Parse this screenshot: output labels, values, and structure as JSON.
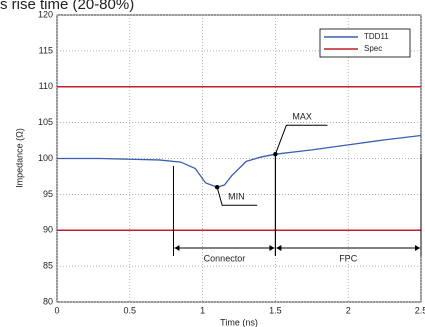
{
  "chart_data": {
    "type": "line",
    "title": "s rise time (20-80%)",
    "xlabel": "Time (ns)",
    "ylabel": "Impedance (Ω)",
    "x": [
      0,
      0.3,
      0.5,
      0.7,
      0.85,
      0.95,
      1.02,
      1.1,
      1.15,
      1.2,
      1.3,
      1.4,
      1.5,
      1.75,
      2,
      2.25,
      2.5
    ],
    "series": [
      {
        "name": "TDD11",
        "color": "#3b5fb0",
        "values": [
          100,
          100,
          99.9,
          99.8,
          99.5,
          98.6,
          96.6,
          96.0,
          96.3,
          97.6,
          99.6,
          100.2,
          100.6,
          101.2,
          101.9,
          102.6,
          103.2
        ]
      }
    ],
    "spec": {
      "name": "Spec",
      "color": "#c0202a",
      "values": [
        110,
        90
      ]
    },
    "annotations": [
      {
        "label": "MIN",
        "x": 1.1,
        "y": 96.0
      },
      {
        "label": "MAX",
        "x": 1.5,
        "y": 100.6
      }
    ],
    "regions": [
      {
        "label": "Connector",
        "start": 0.8,
        "end": 1.5
      },
      {
        "label": "FPC",
        "start": 1.5,
        "end": 2.5
      }
    ],
    "xlim": [
      0,
      2.5
    ],
    "xticks": [
      0,
      0.5,
      1,
      1.5,
      2,
      2.5
    ],
    "ylim": [
      80,
      120
    ],
    "yticks": [
      80,
      85,
      90,
      95,
      100,
      105,
      110,
      115,
      120
    ],
    "grid": true,
    "legend": "upper right"
  }
}
